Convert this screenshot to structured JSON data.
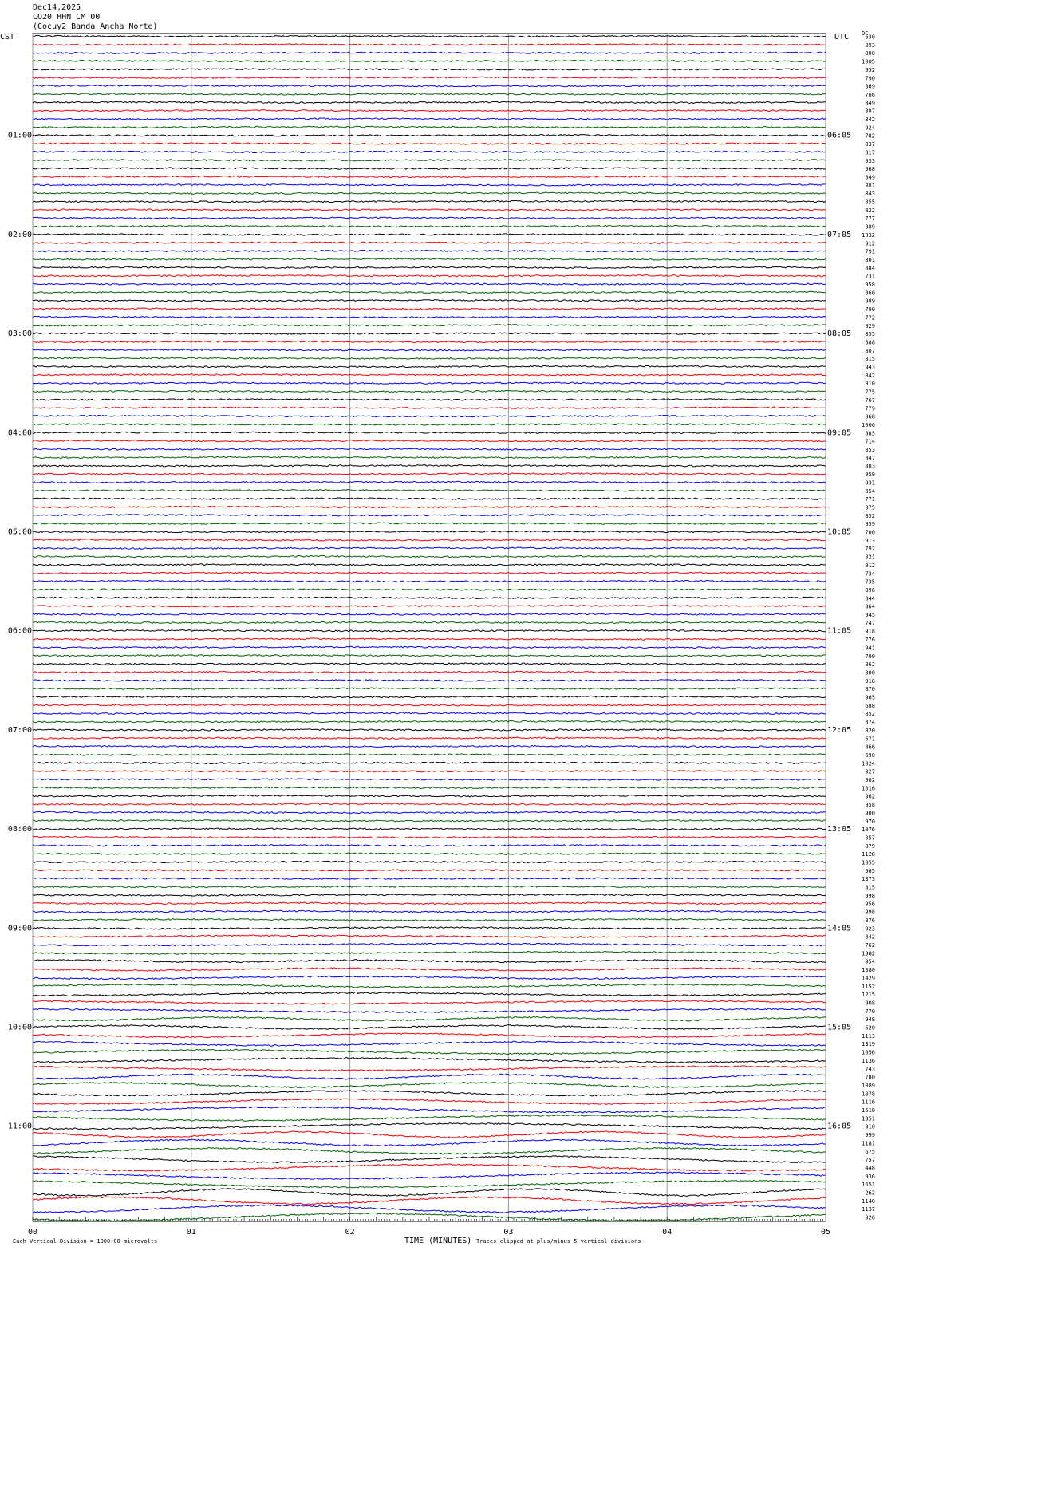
{
  "header": {
    "date": "Dec14,2025",
    "station": "CO20 HHN CM 00",
    "site": "(Cocuy2 Banda Ancha Norte)"
  },
  "left_zone": "CST",
  "right_zone": "UTC",
  "dc_label": "DC",
  "trace_colors": [
    "#000000",
    "#ff0000",
    "#0000ff",
    "#006400"
  ],
  "left_hours": [
    "01:00",
    "02:00",
    "03:00",
    "04:00",
    "05:00",
    "06:00",
    "07:00",
    "08:00",
    "09:00",
    "10:00",
    "11:00"
  ],
  "right_hours": [
    "06:05",
    "07:05",
    "08:05",
    "09:05",
    "10:05",
    "11:05",
    "12:05",
    "13:05",
    "14:05",
    "15:05",
    "16:05"
  ],
  "trace_values": [
    630,
    893,
    800,
    1005,
    952,
    790,
    869,
    706,
    849,
    887,
    842,
    924,
    782,
    837,
    817,
    933,
    968,
    849,
    881,
    843,
    855,
    822,
    777,
    889,
    1032,
    912,
    791,
    801,
    884,
    731,
    958,
    860,
    989,
    790,
    772,
    929,
    855,
    888,
    807,
    815,
    943,
    842,
    910,
    775,
    767,
    779,
    868,
    1006,
    885,
    714,
    853,
    847,
    883,
    959,
    931,
    854,
    771,
    875,
    852,
    959,
    700,
    913,
    792,
    821,
    912,
    734,
    735,
    896,
    844,
    864,
    945,
    747,
    918,
    776,
    941,
    700,
    862,
    800,
    918,
    870,
    965,
    688,
    852,
    874,
    820,
    671,
    866,
    690,
    1024,
    927,
    902,
    1016,
    962,
    958,
    900,
    970,
    1076,
    857,
    879,
    1128,
    1055,
    965,
    1373,
    815,
    998,
    956,
    998,
    876,
    923,
    842,
    762,
    1382,
    954,
    1380,
    1429,
    1152,
    1215,
    908,
    770,
    948,
    520,
    1113,
    1319,
    1056,
    1136,
    743,
    780,
    1089,
    1078,
    1116,
    1519,
    1351,
    910,
    999,
    1181,
    675,
    757,
    448,
    936,
    1651,
    262,
    1140,
    1137,
    926
  ],
  "x_ticks": [
    "00",
    "01",
    "02",
    "03",
    "04",
    "05"
  ],
  "x_label": "TIME (MINUTES)",
  "footer": {
    "scale": "Each Vertical Division = 1000.00 microvolts",
    "clip": "Traces clipped at plus/minus 5 vertical divisions"
  }
}
